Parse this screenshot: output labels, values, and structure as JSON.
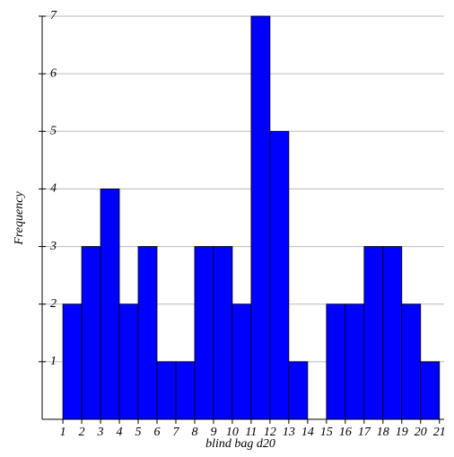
{
  "chart_data": {
    "type": "histogram",
    "x_label": "blind bag d20",
    "y_label": "Frequency",
    "bins": [
      1,
      2,
      3,
      4,
      5,
      6,
      7,
      8,
      9,
      10,
      11,
      12,
      13,
      14,
      15,
      16,
      17,
      18,
      19,
      20,
      21
    ],
    "counts": [
      2,
      3,
      4,
      2,
      3,
      1,
      1,
      3,
      3,
      2,
      7,
      5,
      1,
      0,
      2,
      2,
      3,
      3,
      2,
      1
    ],
    "color": "#0000ff",
    "xlim": [
      -0.1,
      21.25
    ],
    "xticks": [
      1,
      2,
      3,
      4,
      5,
      6,
      7,
      8,
      9,
      10,
      11,
      12,
      13,
      14,
      15,
      16,
      17,
      18,
      19,
      20,
      21
    ],
    "ylim": [
      0,
      7
    ],
    "yticks": [
      1,
      2,
      3,
      4,
      5,
      6,
      7
    ],
    "grid": true
  }
}
